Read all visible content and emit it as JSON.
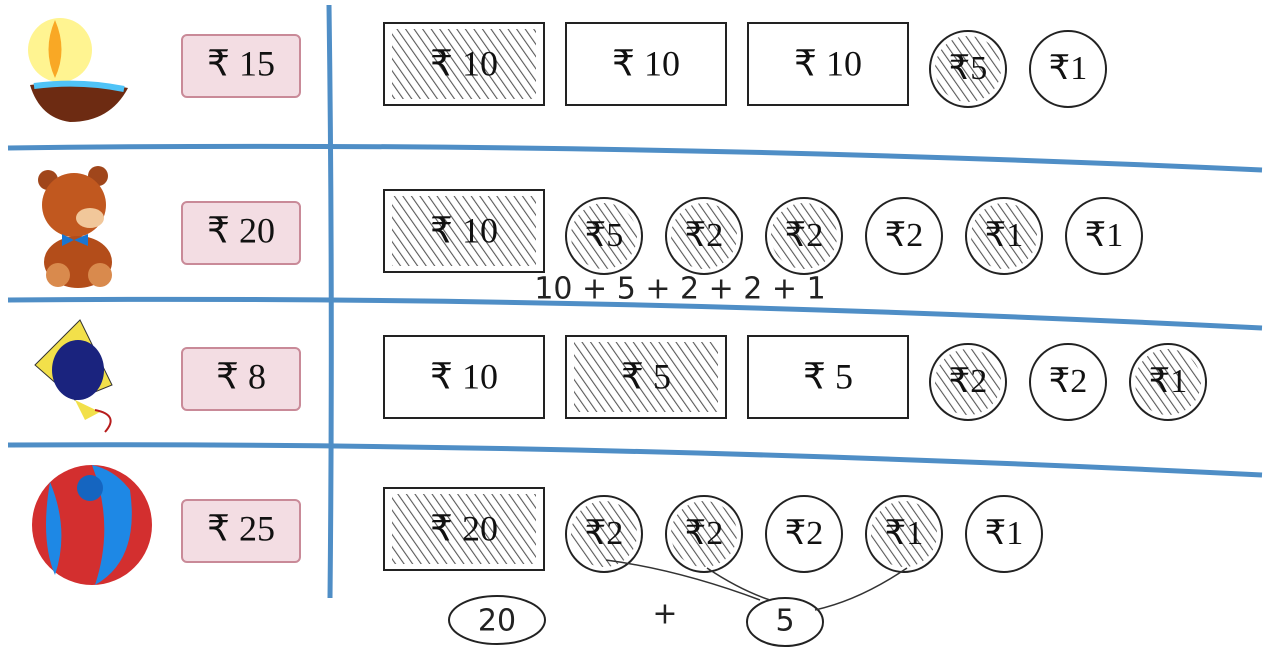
{
  "rows": [
    {
      "price": "₹ 15",
      "money": [
        {
          "label": "₹ 10",
          "shape": "note",
          "crossed": true
        },
        {
          "label": "₹ 10",
          "shape": "note",
          "crossed": false
        },
        {
          "label": "₹ 10",
          "shape": "note",
          "crossed": false
        },
        {
          "label": "₹5",
          "shape": "coin",
          "crossed": true
        },
        {
          "label": "₹1",
          "shape": "coin",
          "crossed": false
        }
      ]
    },
    {
      "price": "₹ 20",
      "money": [
        {
          "label": "₹ 10",
          "shape": "note",
          "crossed": true
        },
        {
          "label": "₹5",
          "shape": "coin",
          "crossed": true
        },
        {
          "label": "₹2",
          "shape": "coin",
          "crossed": true
        },
        {
          "label": "₹2",
          "shape": "coin",
          "crossed": true
        },
        {
          "label": "₹2",
          "shape": "coin",
          "crossed": false
        },
        {
          "label": "₹1",
          "shape": "coin",
          "crossed": true
        },
        {
          "label": "₹1",
          "shape": "coin",
          "crossed": false
        }
      ]
    },
    {
      "price": "₹ 8",
      "money": [
        {
          "label": "₹ 10",
          "shape": "note",
          "crossed": false
        },
        {
          "label": "₹ 5",
          "shape": "note",
          "crossed": true
        },
        {
          "label": "₹ 5",
          "shape": "note",
          "crossed": false
        },
        {
          "label": "₹2",
          "shape": "coin",
          "crossed": true
        },
        {
          "label": "₹2",
          "shape": "coin",
          "crossed": false
        },
        {
          "label": "₹1",
          "shape": "coin",
          "crossed": true
        }
      ]
    },
    {
      "price": "₹ 25",
      "money": [
        {
          "label": "₹ 20",
          "shape": "note",
          "crossed": true
        },
        {
          "label": "₹2",
          "shape": "coin",
          "crossed": true
        },
        {
          "label": "₹2",
          "shape": "coin",
          "crossed": true
        },
        {
          "label": "₹2",
          "shape": "coin",
          "crossed": false
        },
        {
          "label": "₹1",
          "shape": "coin",
          "crossed": true
        },
        {
          "label": "₹1",
          "shape": "coin",
          "crossed": false
        }
      ]
    }
  ],
  "annotations": [
    "10 + 5 + 2 + 2 + 1",
    "20",
    "+",
    "5"
  ]
}
